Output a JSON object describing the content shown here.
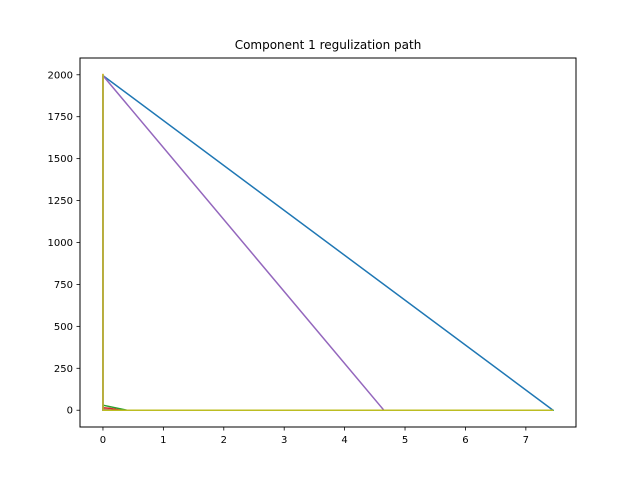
{
  "chart_data": {
    "type": "line",
    "title": "Component 1 regulization path",
    "xlabel": "",
    "ylabel": "",
    "xlim": [
      -0.38,
      7.83
    ],
    "ylim": [
      -100,
      2100
    ],
    "xticks": [
      0,
      1,
      2,
      3,
      4,
      5,
      6,
      7
    ],
    "yticks": [
      0,
      250,
      500,
      750,
      1000,
      1250,
      1500,
      1750,
      2000
    ],
    "grid": false,
    "legend": "none",
    "series": [
      {
        "color": "#1f77b4",
        "points": [
          [
            0,
            1995
          ],
          [
            7.45,
            0
          ],
          [
            0,
            0
          ],
          [
            0,
            1995
          ]
        ]
      },
      {
        "color": "#ff7f0e",
        "points": [
          [
            0,
            2005
          ],
          [
            0,
            0
          ]
        ]
      },
      {
        "color": "#2ca02c",
        "points": [
          [
            0,
            30
          ],
          [
            0.4,
            0
          ],
          [
            7.45,
            0
          ],
          [
            0,
            0
          ],
          [
            0,
            30
          ]
        ]
      },
      {
        "color": "#d62728",
        "points": [
          [
            0,
            15
          ],
          [
            0.1,
            12
          ],
          [
            0.3,
            0
          ],
          [
            0,
            0
          ],
          [
            0,
            15
          ]
        ]
      },
      {
        "color": "#9467bd",
        "points": [
          [
            0,
            1995
          ],
          [
            4.65,
            0
          ],
          [
            0,
            0
          ],
          [
            0,
            1995
          ]
        ]
      },
      {
        "color": "#8c564b",
        "points": [
          [
            0,
            5
          ],
          [
            0.2,
            0
          ]
        ]
      },
      {
        "color": "#e377c2",
        "points": [
          [
            0,
            3
          ],
          [
            0.15,
            0
          ]
        ]
      },
      {
        "color": "#7f7f7f",
        "points": [
          [
            0,
            2
          ],
          [
            0.1,
            0
          ]
        ]
      },
      {
        "color": "#bcbd22",
        "points": [
          [
            0,
            2005
          ],
          [
            0,
            0
          ],
          [
            7.45,
            0
          ]
        ]
      }
    ]
  }
}
